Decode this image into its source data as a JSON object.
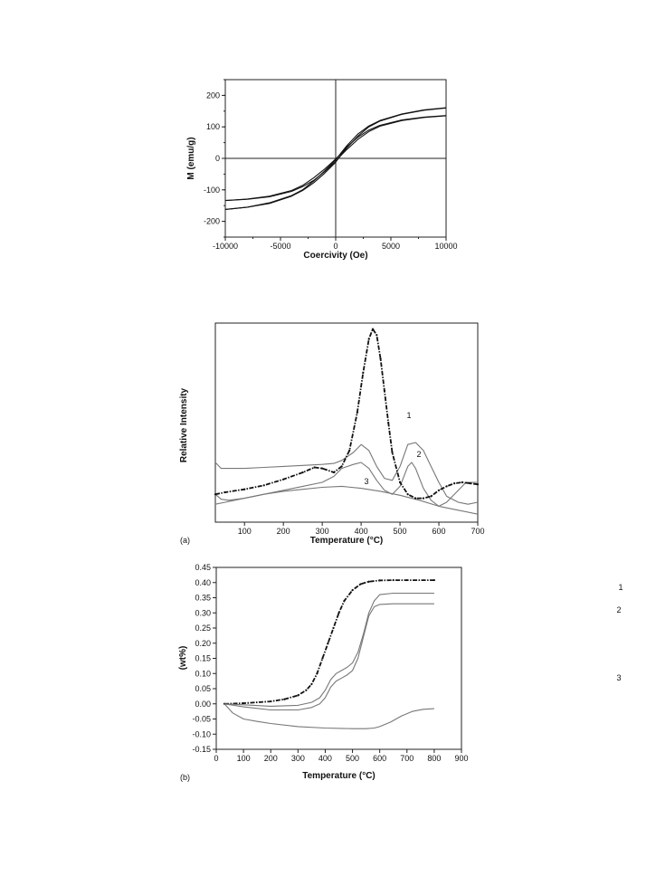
{
  "chart_data": [
    {
      "type": "line",
      "title": "",
      "xlabel": "Coercivity (Oe)",
      "ylabel": "M (emu/g)",
      "xlim": [
        -10000,
        10000
      ],
      "ylim": [
        -250,
        250
      ],
      "xticks": [
        -10000,
        -5000,
        0,
        5000,
        10000
      ],
      "yticks": [
        -200,
        -100,
        0,
        100,
        200
      ],
      "xtick_labels": [
        "-10000",
        "-5000",
        "0",
        "5000",
        "10000"
      ],
      "ytick_labels": [
        "-200",
        "-100",
        "0",
        "100",
        "200"
      ],
      "zero_lines": true,
      "series": [
        {
          "color": "#111111",
          "style": "solid",
          "x": [
            -10000,
            -8000,
            -6000,
            -4000,
            -3000,
            -2000,
            -1000,
            -500,
            0,
            500,
            1000,
            2000,
            3000,
            4000,
            6000,
            8000,
            10000
          ],
          "y": [
            -162,
            -155,
            -143,
            -120,
            -102,
            -78,
            -47,
            -30,
            -12,
            12,
            33,
            70,
            100,
            118,
            140,
            153,
            160
          ]
        },
        {
          "color": "#111111",
          "style": "solid",
          "x": [
            -10000,
            -8000,
            -6000,
            -4000,
            -3000,
            -2000,
            -1000,
            -500,
            0,
            500,
            1000,
            2000,
            3000,
            4000,
            6000,
            8000,
            10000
          ],
          "y": [
            -162,
            -155,
            -141,
            -118,
            -100,
            -72,
            -40,
            -22,
            -5,
            18,
            40,
            77,
            103,
            120,
            141,
            154,
            161
          ]
        },
        {
          "color": "#111111",
          "style": "solid",
          "x": [
            -10000,
            -8000,
            -6000,
            -4000,
            -3000,
            -2000,
            -1000,
            -500,
            0,
            500,
            1000,
            2000,
            3000,
            4000,
            6000,
            8000,
            10000
          ],
          "y": [
            -134,
            -130,
            -122,
            -105,
            -90,
            -70,
            -42,
            -26,
            -10,
            10,
            28,
            60,
            85,
            102,
            120,
            130,
            135
          ]
        },
        {
          "color": "#111111",
          "style": "solid",
          "x": [
            -10000,
            -8000,
            -6000,
            -4000,
            -3000,
            -2000,
            -1000,
            -500,
            0,
            500,
            1000,
            2000,
            3000,
            4000,
            6000,
            8000,
            10000
          ],
          "y": [
            -134,
            -129,
            -120,
            -102,
            -86,
            -62,
            -34,
            -18,
            -2,
            16,
            36,
            67,
            90,
            105,
            122,
            131,
            136
          ]
        }
      ]
    },
    {
      "type": "line",
      "panel": "(a)",
      "title": "",
      "xlabel": "Temperature (°C)",
      "ylabel": "Relative Intensity",
      "xlim": [
        25,
        700
      ],
      "ylim": [
        0,
        100
      ],
      "xticks": [
        100,
        200,
        300,
        400,
        500,
        600,
        700
      ],
      "xtick_labels": [
        "100",
        "200",
        "300",
        "400",
        "500",
        "600",
        "700"
      ],
      "yticks": [],
      "series": [
        {
          "label": "1",
          "color": "#777777",
          "style": "solid",
          "x": [
            25,
            40,
            60,
            100,
            150,
            200,
            250,
            300,
            330,
            350,
            380,
            400,
            420,
            440,
            460,
            480,
            500,
            520,
            540,
            560,
            580,
            600,
            620,
            650,
            675,
            700
          ],
          "y": [
            30,
            27,
            27,
            27,
            27.5,
            28,
            28.5,
            29,
            29.5,
            31,
            35,
            39,
            36,
            28,
            22,
            21,
            28,
            39,
            40,
            36,
            28,
            20,
            13,
            10,
            9,
            10
          ]
        },
        {
          "label": "2",
          "color": "#777777",
          "style": "solid",
          "x": [
            25,
            40,
            60,
            100,
            150,
            200,
            250,
            300,
            330,
            350,
            380,
            400,
            420,
            440,
            460,
            480,
            500,
            520,
            530,
            540,
            560,
            580,
            600,
            620,
            650,
            670,
            700
          ],
          "y": [
            14,
            11.5,
            11,
            12,
            14,
            16,
            18,
            20,
            23,
            27,
            29,
            30,
            27,
            21,
            16,
            14,
            18,
            28,
            30,
            27,
            17,
            11,
            8,
            10,
            16,
            20,
            20
          ]
        },
        {
          "label": "3",
          "color": "#777777",
          "style": "solid",
          "x": [
            25,
            50,
            100,
            150,
            200,
            250,
            300,
            350,
            400,
            450,
            500,
            550,
            600,
            650,
            700
          ],
          "y": [
            9,
            10,
            12,
            14,
            15.5,
            16.5,
            17.5,
            18,
            17,
            15.5,
            13.5,
            11,
            8,
            6,
            4
          ]
        },
        {
          "label": "",
          "color": "#111111",
          "style": "dashdot",
          "x": [
            25,
            50,
            100,
            150,
            200,
            250,
            280,
            300,
            330,
            350,
            370,
            390,
            405,
            420,
            430,
            440,
            450,
            460,
            470,
            480,
            500,
            520,
            540,
            560,
            580,
            600,
            620,
            640,
            660,
            680,
            700
          ],
          "y": [
            14,
            15,
            16.5,
            18.5,
            21.5,
            25,
            27.5,
            27,
            25,
            28,
            36,
            55,
            75,
            92,
            97,
            94,
            82,
            66,
            50,
            35,
            20,
            14,
            12,
            12,
            13,
            16,
            18,
            19.5,
            20,
            19.5,
            19
          ]
        }
      ],
      "annotations": [
        "1",
        "2",
        "3"
      ]
    },
    {
      "type": "line",
      "panel": "(b)",
      "title": "",
      "xlabel": "Temperature (°C)",
      "ylabel": "(wt%)",
      "xlim": [
        0,
        900
      ],
      "ylim": [
        -0.15,
        0.45
      ],
      "xticks": [
        0,
        100,
        200,
        300,
        400,
        500,
        600,
        700,
        800,
        900
      ],
      "xtick_labels": [
        "0",
        "100",
        "200",
        "300",
        "400",
        "500",
        "600",
        "700",
        "800",
        "900"
      ],
      "yticks": [
        -0.15,
        -0.1,
        -0.05,
        0.0,
        0.05,
        0.1,
        0.15,
        0.2,
        0.25,
        0.3,
        0.35,
        0.4,
        0.45
      ],
      "ytick_labels": [
        "-0.15",
        "-0.10",
        "-0.05",
        "0.00",
        "0.05",
        "0.10",
        "0.15",
        "0.20",
        "0.25",
        "0.30",
        "0.35",
        "0.40",
        "0.45"
      ],
      "series": [
        {
          "label": "",
          "color": "#111111",
          "style": "dashdot",
          "x": [
            30,
            100,
            200,
            250,
            300,
            330,
            350,
            370,
            390,
            410,
            430,
            450,
            470,
            500,
            530,
            560,
            600,
            650,
            700,
            800
          ],
          "y": [
            0.0,
            0.002,
            0.008,
            0.015,
            0.028,
            0.045,
            0.065,
            0.1,
            0.15,
            0.2,
            0.25,
            0.3,
            0.34,
            0.375,
            0.395,
            0.403,
            0.407,
            0.408,
            0.408,
            0.408
          ]
        },
        {
          "label": "1",
          "color": "#777777",
          "style": "solid",
          "x": [
            30,
            100,
            200,
            300,
            350,
            380,
            400,
            420,
            440,
            460,
            480,
            500,
            520,
            540,
            560,
            580,
            600,
            650,
            700,
            800
          ],
          "y": [
            0.0,
            -0.003,
            -0.008,
            -0.005,
            0.005,
            0.02,
            0.045,
            0.08,
            0.1,
            0.11,
            0.12,
            0.135,
            0.17,
            0.23,
            0.3,
            0.34,
            0.36,
            0.365,
            0.365,
            0.365
          ]
        },
        {
          "label": "2",
          "color": "#777777",
          "style": "solid",
          "x": [
            30,
            100,
            200,
            300,
            350,
            380,
            400,
            420,
            440,
            460,
            480,
            500,
            520,
            540,
            560,
            580,
            600,
            650,
            700,
            800
          ],
          "y": [
            0.0,
            -0.01,
            -0.02,
            -0.02,
            -0.012,
            0.0,
            0.02,
            0.055,
            0.075,
            0.085,
            0.095,
            0.11,
            0.15,
            0.22,
            0.29,
            0.32,
            0.328,
            0.33,
            0.33,
            0.33
          ]
        },
        {
          "label": "3",
          "color": "#777777",
          "style": "solid",
          "x": [
            30,
            60,
            100,
            150,
            200,
            300,
            400,
            500,
            550,
            580,
            600,
            640,
            680,
            720,
            760,
            800
          ],
          "y": [
            0.0,
            -0.03,
            -0.05,
            -0.058,
            -0.065,
            -0.075,
            -0.08,
            -0.082,
            -0.082,
            -0.08,
            -0.075,
            -0.06,
            -0.04,
            -0.025,
            -0.018,
            -0.016
          ]
        }
      ],
      "annotations": [
        "1",
        "2",
        "3"
      ]
    }
  ]
}
